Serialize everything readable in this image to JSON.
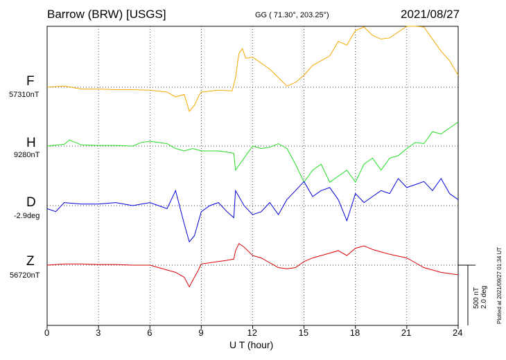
{
  "header": {
    "station": "Barrow (BRW)  [USGS]",
    "coords": "GG ( 71.30°, 203.25°)",
    "date": "2021/08/27"
  },
  "channels": [
    {
      "label": "F",
      "baseline": "57310nT",
      "color": "#f5a800"
    },
    {
      "label": "H",
      "baseline": "9280nT",
      "color": "#22dd22"
    },
    {
      "label": "D",
      "baseline": "-2.9deg",
      "color": "#0000dd"
    },
    {
      "label": "Z",
      "baseline": "56720nT",
      "color": "#dd0000"
    }
  ],
  "scale": {
    "line1": "500 nT",
    "line2": "2.0 deg"
  },
  "plotted": "Plotted at 2021/09/27 01:34 UT",
  "chart_data": {
    "type": "line",
    "xlabel": "U T (hour)",
    "xlim": [
      0,
      24
    ],
    "xticks": [
      "0",
      "3",
      "6",
      "9",
      "12",
      "15",
      "18",
      "21",
      "24"
    ],
    "grid": true,
    "series": [
      {
        "name": "F",
        "unit": "nT",
        "x": [
          0,
          1,
          2,
          3,
          4,
          5,
          6,
          7,
          7.5,
          8,
          8.3,
          8.6,
          8.9,
          9,
          10,
          10.8,
          11,
          11.2,
          11.4,
          11.6,
          12,
          12.5,
          13,
          13.5,
          14,
          14.5,
          15,
          15.5,
          16,
          16.5,
          17,
          17.5,
          18,
          18.5,
          19,
          19.5,
          20,
          21,
          21.5,
          22,
          22.5,
          23,
          23.5,
          24
        ],
        "y": [
          0,
          10,
          -15,
          -15,
          -20,
          -20,
          -25,
          -40,
          -80,
          -60,
          -200,
          -150,
          -60,
          -40,
          -25,
          -30,
          80,
          280,
          320,
          240,
          250,
          200,
          150,
          80,
          10,
          40,
          100,
          180,
          220,
          260,
          380,
          350,
          470,
          500,
          430,
          400,
          410,
          520,
          580,
          500,
          400,
          300,
          220,
          100
        ]
      },
      {
        "name": "H",
        "unit": "nT",
        "x": [
          0,
          1,
          1.3,
          2,
          3,
          4,
          5,
          5.5,
          6,
          7,
          7.5,
          8,
          8.5,
          9,
          9.5,
          10,
          10.5,
          10.9,
          11,
          11.5,
          12,
          12.5,
          13,
          13.5,
          14,
          14.5,
          15,
          15.5,
          16,
          16.5,
          17,
          17.5,
          18,
          18.5,
          19,
          19.5,
          20,
          20.5,
          21,
          21.5,
          22,
          22.5,
          23,
          23.5,
          24
        ],
        "y": [
          0,
          15,
          50,
          10,
          5,
          5,
          0,
          30,
          40,
          20,
          -20,
          -40,
          -20,
          -40,
          -40,
          -40,
          -50,
          -60,
          -200,
          -100,
          0,
          -20,
          -10,
          20,
          -20,
          -150,
          -300,
          -200,
          -150,
          -300,
          -250,
          -200,
          -300,
          -150,
          -100,
          -200,
          -100,
          -80,
          -20,
          30,
          20,
          120,
          100,
          150,
          200
        ]
      },
      {
        "name": "D",
        "unit": "deg",
        "x": [
          0,
          0.5,
          1,
          2,
          3,
          4,
          5,
          6,
          6.5,
          7,
          7.5,
          8,
          8.3,
          8.6,
          9,
          9.5,
          10,
          10.5,
          10.9,
          11,
          11.5,
          12,
          12.5,
          13,
          13.5,
          14,
          14.5,
          15,
          15.5,
          16,
          16.5,
          17,
          17.5,
          18,
          18.5,
          19,
          19.5,
          20,
          20.5,
          21,
          21.5,
          22,
          22.5,
          23,
          23.5,
          24
        ],
        "y": [
          -0.1,
          -0.2,
          0.1,
          0.05,
          0.05,
          0.1,
          0.0,
          0.1,
          0.0,
          -0.1,
          0.5,
          -0.6,
          -1.2,
          -1.0,
          -0.2,
          0.0,
          0.1,
          -0.2,
          -0.4,
          0.5,
          0.0,
          -0.3,
          -0.2,
          0.1,
          -0.3,
          0.2,
          0.5,
          0.8,
          0.3,
          0.5,
          0.6,
          0.2,
          -0.5,
          0.4,
          0.1,
          0.3,
          0.5,
          0.4,
          0.9,
          0.6,
          0.7,
          0.8,
          0.5,
          0.9,
          0.4,
          0.2
        ]
      },
      {
        "name": "Z",
        "unit": "nT",
        "x": [
          0,
          1,
          2,
          3,
          4,
          5,
          6,
          7,
          7.5,
          8,
          8.3,
          8.6,
          8.8,
          9,
          9.5,
          10,
          10.5,
          10.9,
          11,
          11.2,
          11.5,
          12,
          12.5,
          13,
          13.5,
          14,
          14.5,
          15,
          15.5,
          16,
          16.5,
          17,
          17.5,
          18,
          18.5,
          19,
          19.5,
          20,
          21,
          21.5,
          22,
          22.5,
          23,
          23.5,
          24
        ],
        "y": [
          0,
          10,
          10,
          5,
          5,
          0,
          0,
          -40,
          -60,
          -100,
          -180,
          -100,
          -50,
          10,
          20,
          30,
          40,
          50,
          120,
          180,
          150,
          80,
          60,
          20,
          -20,
          -30,
          -20,
          30,
          60,
          80,
          100,
          120,
          80,
          140,
          160,
          130,
          110,
          90,
          60,
          20,
          -20,
          -40,
          -60,
          -70,
          -80
        ]
      }
    ]
  }
}
